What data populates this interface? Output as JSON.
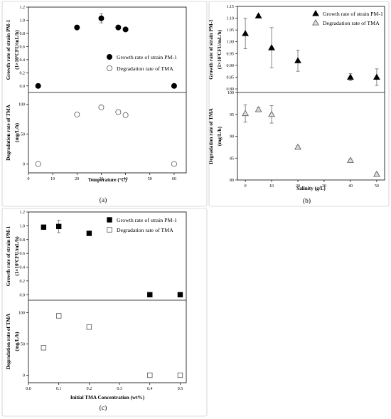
{
  "chart_data": [
    {
      "type": "scatter",
      "panel_label": "(a)",
      "xlabel": "Temperature (°C)",
      "xlim": [
        0,
        65
      ],
      "xticks": [
        "0",
        "10",
        "20",
        "30",
        "40",
        "50",
        "60"
      ],
      "top": {
        "ylabel_line1": "Growth rate of strain PM-1",
        "ylabel_line2": "(1×10⁷CFU/mL/h)",
        "ylim": [
          -0.1,
          1.2
        ],
        "yticks": [
          "0.0",
          "0.2",
          "0.4",
          "0.6",
          "0.8",
          "1.0",
          "1.2"
        ],
        "legend": "Growth rate of strain PM-1",
        "marker": "filled-circle",
        "x": [
          4,
          20,
          30,
          37,
          40,
          60
        ],
        "y": [
          0.0,
          0.89,
          1.03,
          0.89,
          0.86,
          0.0
        ],
        "err": [
          0,
          0,
          0.07,
          0,
          0,
          0
        ]
      },
      "bottom": {
        "ylabel_line1": "Degradation rate of TMA",
        "ylabel_line2": "(mg/L/h)",
        "ylim": [
          -15,
          120
        ],
        "yticks": [
          "0",
          "50",
          "100"
        ],
        "legend": "Degradation rate of TMA",
        "marker": "open-circle",
        "x": [
          4,
          20,
          30,
          37,
          40,
          60
        ],
        "y": [
          0,
          83,
          95,
          87,
          82,
          0
        ],
        "err": [
          0,
          3,
          2,
          3,
          3,
          0
        ]
      }
    },
    {
      "type": "scatter",
      "panel_label": "(b)",
      "xlabel": "Salinity (g/L)",
      "xlim": [
        -3,
        53
      ],
      "xticks": [
        "0",
        "10",
        "20",
        "30",
        "40",
        "50"
      ],
      "top": {
        "ylabel_line1": "Growth rate of strain PM-1",
        "ylabel_line2": "(1×10⁷CFU/mL/h)",
        "ylim": [
          0.785,
          1.15
        ],
        "yticks": [
          "0.80",
          "0.85",
          "0.90",
          "0.95",
          "1.00",
          "1.05",
          "1.10",
          "1.15"
        ],
        "legend": "Growth rate of strain PM-1",
        "marker": "filled-triangle",
        "x": [
          0,
          5,
          10,
          20,
          40,
          50
        ],
        "y": [
          1.035,
          1.11,
          0.975,
          0.92,
          0.85,
          0.85
        ],
        "err": [
          0.065,
          0.005,
          0.085,
          0.045,
          0.015,
          0.035
        ]
      },
      "bottom": {
        "ylabel_line1": "Degradation rate of TMA",
        "ylabel_line2": "(mg/L/h)",
        "ylim": [
          80,
          100
        ],
        "yticks": [
          "80",
          "85",
          "90",
          "95",
          "100"
        ],
        "legend": "Degradation rate of TMA",
        "marker": "open-triangle",
        "x": [
          0,
          5,
          10,
          20,
          40,
          50
        ],
        "y": [
          95.2,
          96.1,
          95.0,
          87.5,
          84.5,
          81.3
        ],
        "err": [
          2.0,
          0.4,
          2.0,
          0.3,
          0.3,
          0.3
        ]
      }
    },
    {
      "type": "scatter",
      "panel_label": "(c)",
      "xlabel": "Initial TMA Concentration (wt%)",
      "xlim": [
        0.0,
        0.52
      ],
      "xticks": [
        "0.0",
        "0.1",
        "0.2",
        "0.3",
        "0.4",
        "0.5"
      ],
      "top": {
        "ylabel_line1": "Growth rate of strain PM-1",
        "ylabel_line2": "(1×10⁷CFU/mL/h)",
        "ylim": [
          -0.08,
          1.2
        ],
        "yticks": [
          "0.0",
          "0.2",
          "0.4",
          "0.6",
          "0.8",
          "1.0",
          "1.2"
        ],
        "legend": "Growth rate of strain PM-1",
        "marker": "filled-square",
        "x": [
          0.05,
          0.1,
          0.2,
          0.4,
          0.5
        ],
        "y": [
          0.98,
          0.99,
          0.89,
          0.0,
          0.0
        ],
        "err": [
          0.02,
          0.09,
          0.02,
          0,
          0
        ]
      },
      "bottom": {
        "ylabel_line1": "Degradation rate of TMA",
        "ylabel_line2": "(mg/L/h)",
        "ylim": [
          -12,
          120
        ],
        "yticks": [
          "0",
          "50",
          "100"
        ],
        "legend": "Degradation rate of TMA",
        "marker": "open-square",
        "x": [
          0.05,
          0.1,
          0.2,
          0.4,
          0.5
        ],
        "y": [
          44,
          95,
          77,
          0,
          0
        ],
        "err": [
          2,
          2,
          3,
          0,
          0
        ]
      }
    }
  ]
}
